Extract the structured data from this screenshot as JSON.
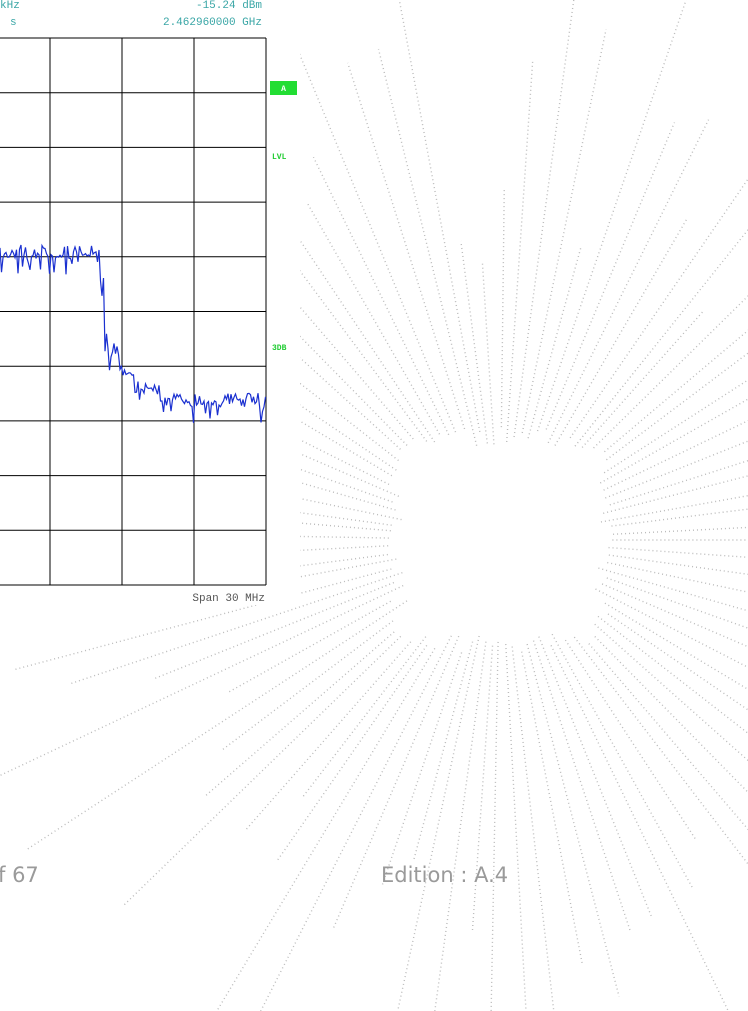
{
  "header": {
    "left_top": "kHz",
    "right_top": "-15.24 dBm",
    "left_second": "s",
    "right_second": "2.462960000 GHz"
  },
  "side_labels": {
    "marker": "A",
    "level": "LVL",
    "db": "3DB"
  },
  "footer_label": "Span 30 MHz",
  "page": {
    "page_number": "f 67",
    "edition": "Edition : A.4"
  }
}
